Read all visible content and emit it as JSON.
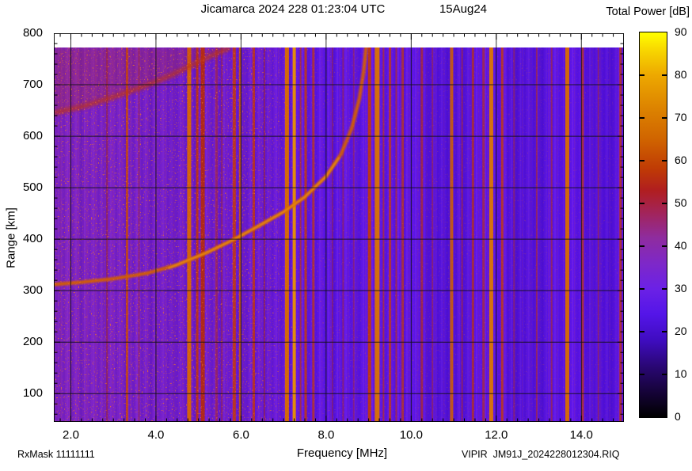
{
  "header": {
    "title": "Jicamarca 2024 228 01:23:04 UTC",
    "date_label": "15Aug24",
    "colorbar_title": "Total Power [dB]"
  },
  "footer": {
    "rx_mask": "RxMask 11111111",
    "xlabel": "Frequency [MHz]",
    "file_label": "VIPIR  JM91J_2024228012304.RIQ"
  },
  "axes": {
    "ylabel": "Range [km]",
    "x_tick_labels": [
      "2.0",
      "4.0",
      "6.0",
      "8.0",
      "10.0",
      "12.0",
      "14.0"
    ],
    "y_tick_labels": [
      "100",
      "200",
      "300",
      "400",
      "500",
      "600",
      "700",
      "800"
    ]
  },
  "chart_data": {
    "type": "heatmap",
    "title": "Jicamarca 2024 228 01:23:04 UTC",
    "subtitle": "15Aug24",
    "xlabel": "Frequency [MHz]",
    "ylabel": "Range [km]",
    "zlabel": "Total Power [dB]",
    "xlim": [
      1.6,
      15.0
    ],
    "ylim": [
      45,
      800
    ],
    "x_major_ticks": [
      2,
      4,
      6,
      8,
      10,
      12,
      14
    ],
    "x_minor_step": 0.25,
    "y_major_ticks": [
      100,
      200,
      300,
      400,
      500,
      600,
      700,
      800
    ],
    "y_minor_step": 20,
    "grid": true,
    "data_top_km": 772,
    "background_power_db": 24,
    "colorbar": {
      "min": 0,
      "max": 90,
      "tick_labels": [
        "0",
        "10",
        "20",
        "30",
        "40",
        "50",
        "60",
        "70",
        "80",
        "90"
      ],
      "tick_values": [
        0,
        10,
        20,
        30,
        40,
        50,
        60,
        70,
        80,
        90
      ],
      "stops": [
        [
          0,
          "#000000"
        ],
        [
          6,
          "#16033a"
        ],
        [
          12,
          "#2a0775"
        ],
        [
          18,
          "#3f0cc0"
        ],
        [
          24,
          "#5415e8"
        ],
        [
          30,
          "#6b21e6"
        ],
        [
          36,
          "#7e28c8"
        ],
        [
          42,
          "#8f2c9e"
        ],
        [
          48,
          "#a32458"
        ],
        [
          53,
          "#b01e20"
        ],
        [
          58,
          "#bf3a05"
        ],
        [
          65,
          "#d06400"
        ],
        [
          72,
          "#dc8200"
        ],
        [
          80,
          "#eda800"
        ],
        [
          86,
          "#f8d800"
        ],
        [
          90,
          "#ffff00"
        ]
      ]
    },
    "colors": {
      "background": "#5d16e4",
      "background_left": "#6f1fd8",
      "grid": "rgba(15,15,15,0.85)",
      "trace": "#d45e00",
      "trace_core": "#ec9410",
      "second_hop": "#c03408",
      "spread": "#c03008"
    },
    "f_layer_trace_f_km": [
      [
        1.6,
        312
      ],
      [
        2.2,
        316
      ],
      [
        3.0,
        323
      ],
      [
        3.8,
        334
      ],
      [
        4.5,
        350
      ],
      [
        5.2,
        374
      ],
      [
        5.8,
        398
      ],
      [
        6.4,
        425
      ],
      [
        7.0,
        453
      ],
      [
        7.5,
        482
      ],
      [
        8.0,
        522
      ],
      [
        8.35,
        565
      ],
      [
        8.6,
        615
      ],
      [
        8.78,
        672
      ],
      [
        8.88,
        725
      ],
      [
        8.94,
        772
      ]
    ],
    "trace_bright_core_f_km": [
      [
        4.3,
        344
      ],
      [
        5.2,
        374
      ],
      [
        5.8,
        398
      ],
      [
        6.4,
        425
      ],
      [
        7.0,
        453
      ],
      [
        7.5,
        482
      ],
      [
        8.0,
        522
      ],
      [
        8.3,
        558
      ]
    ],
    "second_hop_trace_f_km": [
      [
        1.6,
        645
      ],
      [
        2.3,
        658
      ],
      [
        3.0,
        676
      ],
      [
        3.7,
        696
      ],
      [
        4.3,
        716
      ],
      [
        4.9,
        740
      ],
      [
        5.4,
        760
      ],
      [
        5.75,
        772
      ]
    ],
    "critical_frequency_mhz": 8.9,
    "virtual_height_min_km": 312,
    "rfi_stripes": [
      [
        2.85,
        2,
        "#b02810",
        0.5
      ],
      [
        3.32,
        3,
        "#cc4a00",
        0.8
      ],
      [
        3.6,
        2,
        "#a8280f",
        0.35
      ],
      [
        4.78,
        5,
        "#d86800",
        0.95
      ],
      [
        4.97,
        3,
        "#c23405",
        0.85
      ],
      [
        5.1,
        5,
        "#b62a08",
        0.9
      ],
      [
        5.42,
        3,
        "#b42a10",
        0.5
      ],
      [
        5.55,
        2,
        "#b42a10",
        0.45
      ],
      [
        5.84,
        4,
        "#c43a08",
        0.85
      ],
      [
        5.98,
        3,
        "#d05c00",
        0.8
      ],
      [
        6.3,
        3,
        "#c23608",
        0.8
      ],
      [
        6.55,
        2,
        "#b42a10",
        0.45
      ],
      [
        7.08,
        5,
        "#d86c00",
        0.95
      ],
      [
        7.25,
        4,
        "#e89200",
        0.95
      ],
      [
        7.4,
        2,
        "#c23405",
        0.65
      ],
      [
        7.52,
        3,
        "#c43a08",
        0.8
      ],
      [
        7.7,
        3,
        "#c43a08",
        0.7
      ],
      [
        8.15,
        2,
        "#b02810",
        0.4
      ],
      [
        8.4,
        2,
        "#b02810",
        0.45
      ],
      [
        8.65,
        2,
        "#b02810",
        0.4
      ],
      [
        9.02,
        4,
        "#c43a08",
        0.9
      ],
      [
        9.2,
        6,
        "#db7300",
        0.95
      ],
      [
        9.35,
        2,
        "#c23405",
        0.6
      ],
      [
        9.5,
        3,
        "#c43a08",
        0.75
      ],
      [
        9.65,
        2,
        "#c23405",
        0.6
      ],
      [
        9.8,
        3,
        "#c43a08",
        0.7
      ],
      [
        10.25,
        3,
        "#bd3008",
        0.65
      ],
      [
        10.5,
        2,
        "#b02810",
        0.45
      ],
      [
        10.95,
        4,
        "#d06000",
        0.85
      ],
      [
        11.2,
        2,
        "#b02810",
        0.45
      ],
      [
        11.45,
        3,
        "#c23608",
        0.7
      ],
      [
        11.7,
        3,
        "#c23405",
        0.6
      ],
      [
        11.88,
        5,
        "#dd7800",
        0.95
      ],
      [
        12.14,
        3,
        "#c43a08",
        0.8
      ],
      [
        12.42,
        2,
        "#b02810",
        0.4
      ],
      [
        12.95,
        2,
        "#b82e10",
        0.55
      ],
      [
        13.3,
        2,
        "#b82e10",
        0.55
      ],
      [
        13.67,
        5,
        "#d86c00",
        0.95
      ],
      [
        14.03,
        3,
        "#c23608",
        0.7
      ],
      [
        14.4,
        2,
        "#b02810",
        0.45
      ],
      [
        14.92,
        3,
        "#c23608",
        0.75
      ]
    ],
    "dark_bands_mhz": [
      [
        10.35,
        11.35
      ],
      [
        12.25,
        13.2
      ],
      [
        14.15,
        14.85
      ]
    ]
  }
}
